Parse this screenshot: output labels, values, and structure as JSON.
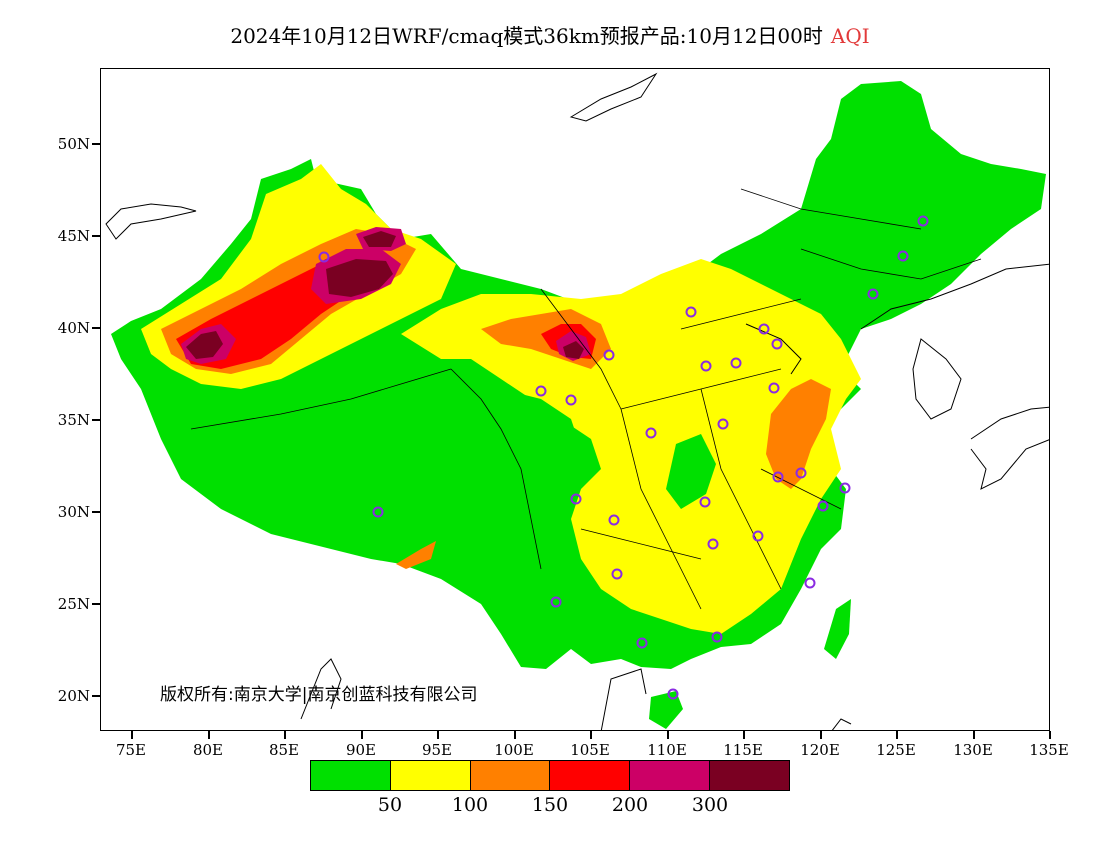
{
  "title": {
    "main": "2024年10月12日WRF/cmaq模式36km预报产品:10月12日00时",
    "variable": "AQI"
  },
  "axes": {
    "lat_labels": [
      "50N",
      "45N",
      "40N",
      "35N",
      "30N",
      "25N",
      "20N"
    ],
    "lon_labels": [
      "75E",
      "80E",
      "85E",
      "90E",
      "95E",
      "100E",
      "105E",
      "110E",
      "115E",
      "120E",
      "125E",
      "130E",
      "135E"
    ]
  },
  "copyright": "版权所有:南京大学|南京创蓝科技有限公司",
  "legend": {
    "colors": [
      "#00e000",
      "#ffff00",
      "#ff8000",
      "#ff0000",
      "#cc0066",
      "#7a0022"
    ],
    "labels": [
      "50",
      "100",
      "150",
      "200",
      "300"
    ]
  }
}
